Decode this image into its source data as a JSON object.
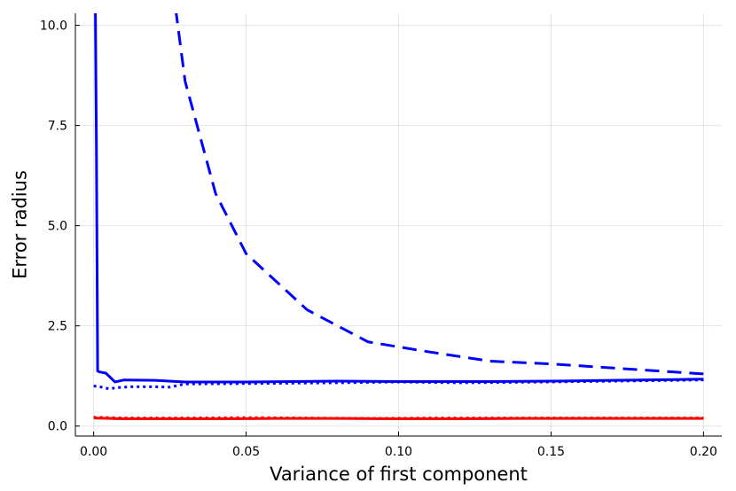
{
  "chart_data": {
    "type": "line",
    "title": "",
    "xlabel": "Variance of first component",
    "ylabel": "Error radius",
    "xlim": [
      -0.006,
      0.206
    ],
    "ylim": [
      -0.25,
      10.3
    ],
    "grid": true,
    "legend": "none",
    "xticks": [
      {
        "value": 0.0,
        "label": "0.00"
      },
      {
        "value": 0.05,
        "label": "0.05"
      },
      {
        "value": 0.1,
        "label": "0.10"
      },
      {
        "value": 0.15,
        "label": "0.15"
      },
      {
        "value": 0.2,
        "label": "0.20"
      }
    ],
    "yticks": [
      {
        "value": 0.0,
        "label": "0.0"
      },
      {
        "value": 2.5,
        "label": "2.5"
      },
      {
        "value": 5.0,
        "label": "5.0"
      },
      {
        "value": 7.5,
        "label": "7.5"
      },
      {
        "value": 10.0,
        "label": "10.0"
      }
    ],
    "series": [
      {
        "color": "#0000ff",
        "style": "dashed",
        "x": [
          0.025,
          0.03,
          0.04,
          0.05,
          0.07,
          0.09,
          0.11,
          0.13,
          0.15,
          0.17,
          0.19,
          0.2
        ],
        "y": [
          11.5,
          8.6,
          5.8,
          4.3,
          2.9,
          2.1,
          1.85,
          1.62,
          1.55,
          1.45,
          1.35,
          1.3
        ]
      },
      {
        "color": "#0000ff",
        "style": "solid",
        "x": [
          0.0005,
          0.0009,
          0.0013,
          0.002,
          0.004,
          0.007,
          0.01,
          0.02,
          0.03,
          0.05,
          0.08,
          0.1,
          0.13,
          0.15,
          0.17,
          0.2
        ],
        "y": [
          11.0,
          7.0,
          1.37,
          1.35,
          1.32,
          1.1,
          1.15,
          1.14,
          1.1,
          1.1,
          1.12,
          1.11,
          1.11,
          1.12,
          1.14,
          1.17
        ]
      },
      {
        "color": "#0000ff",
        "style": "dotted",
        "x": [
          0.0,
          0.002,
          0.005,
          0.008,
          0.012,
          0.02,
          0.025,
          0.03,
          0.05,
          0.08,
          0.1,
          0.12,
          0.15,
          0.17,
          0.2
        ],
        "y": [
          1.0,
          0.98,
          0.93,
          0.96,
          0.98,
          0.98,
          0.97,
          1.05,
          1.06,
          1.08,
          1.1,
          1.08,
          1.1,
          1.12,
          1.15
        ]
      },
      {
        "color": "#ff0000",
        "style": "dotted",
        "x": [
          0.0,
          0.01,
          0.03,
          0.05,
          0.07,
          0.09,
          0.11,
          0.13,
          0.15,
          0.17,
          0.2
        ],
        "y": [
          0.22,
          0.2,
          0.2,
          0.21,
          0.2,
          0.19,
          0.2,
          0.2,
          0.2,
          0.2,
          0.2
        ]
      },
      {
        "color": "#ff0000",
        "style": "solid",
        "x": [
          0.0,
          0.005,
          0.01,
          0.02,
          0.04,
          0.06,
          0.08,
          0.1,
          0.12,
          0.14,
          0.16,
          0.18,
          0.2
        ],
        "y": [
          0.2,
          0.19,
          0.18,
          0.18,
          0.18,
          0.19,
          0.19,
          0.18,
          0.18,
          0.19,
          0.19,
          0.19,
          0.19
        ]
      }
    ]
  }
}
